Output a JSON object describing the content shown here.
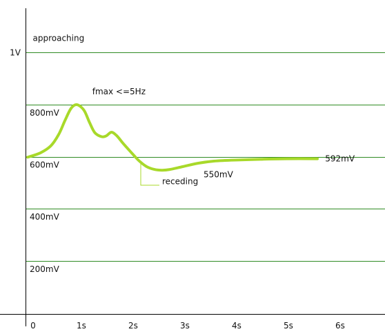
{
  "chart_data": {
    "type": "line",
    "xlabel": "",
    "ylabel": "",
    "x_ticks": [
      {
        "value": 0,
        "label": "0"
      },
      {
        "value": 1,
        "label": "1s"
      },
      {
        "value": 2,
        "label": "2s"
      },
      {
        "value": 3,
        "label": "3s"
      },
      {
        "value": 4,
        "label": "4s"
      },
      {
        "value": 5,
        "label": "5s"
      },
      {
        "value": 6,
        "label": "6s"
      }
    ],
    "y_ticks": [
      {
        "value": 1000,
        "label": "1V"
      },
      {
        "value": 800,
        "label": "800mV"
      },
      {
        "value": 600,
        "label": "600mV"
      },
      {
        "value": 400,
        "label": "400mV"
      },
      {
        "value": 200,
        "label": "200mV"
      }
    ],
    "xlim": [
      -0.05,
      6.7
    ],
    "ylim": [
      -35,
      1180
    ],
    "grid": true,
    "series": [
      {
        "color": "#a8d92a",
        "points": [
          [
            0.0,
            598
          ],
          [
            0.25,
            615
          ],
          [
            0.45,
            642
          ],
          [
            0.6,
            685
          ],
          [
            0.72,
            738
          ],
          [
            0.83,
            783
          ],
          [
            0.92,
            799
          ],
          [
            1.0,
            796
          ],
          [
            1.1,
            775
          ],
          [
            1.2,
            730
          ],
          [
            1.3,
            692
          ],
          [
            1.43,
            677
          ],
          [
            1.52,
            680
          ],
          [
            1.62,
            694
          ],
          [
            1.72,
            681
          ],
          [
            1.85,
            650
          ],
          [
            2.0,
            617
          ],
          [
            2.15,
            585
          ],
          [
            2.3,
            562
          ],
          [
            2.45,
            551
          ],
          [
            2.6,
            548
          ],
          [
            2.75,
            551
          ],
          [
            3.0,
            562
          ],
          [
            3.3,
            575
          ],
          [
            3.6,
            583
          ],
          [
            4.0,
            587
          ],
          [
            4.5,
            590
          ],
          [
            5.0,
            592
          ],
          [
            5.6,
            592
          ]
        ]
      }
    ],
    "annotations": [
      {
        "text": "approaching",
        "x": 0.1,
        "y": 1055
      },
      {
        "text": "fmax <=5Hz",
        "x": 1.25,
        "y": 850
      },
      {
        "text": "receding",
        "x": 2.6,
        "y": 505
      },
      {
        "text": "550mV",
        "x": 3.4,
        "y": 532
      },
      {
        "text": "592mV",
        "x": 5.75,
        "y": 592
      }
    ]
  },
  "colors": {
    "axis": "#000000",
    "grid": "#2e8b22",
    "line": "#a8d92a",
    "annotation_leader": "#a8d92a"
  }
}
